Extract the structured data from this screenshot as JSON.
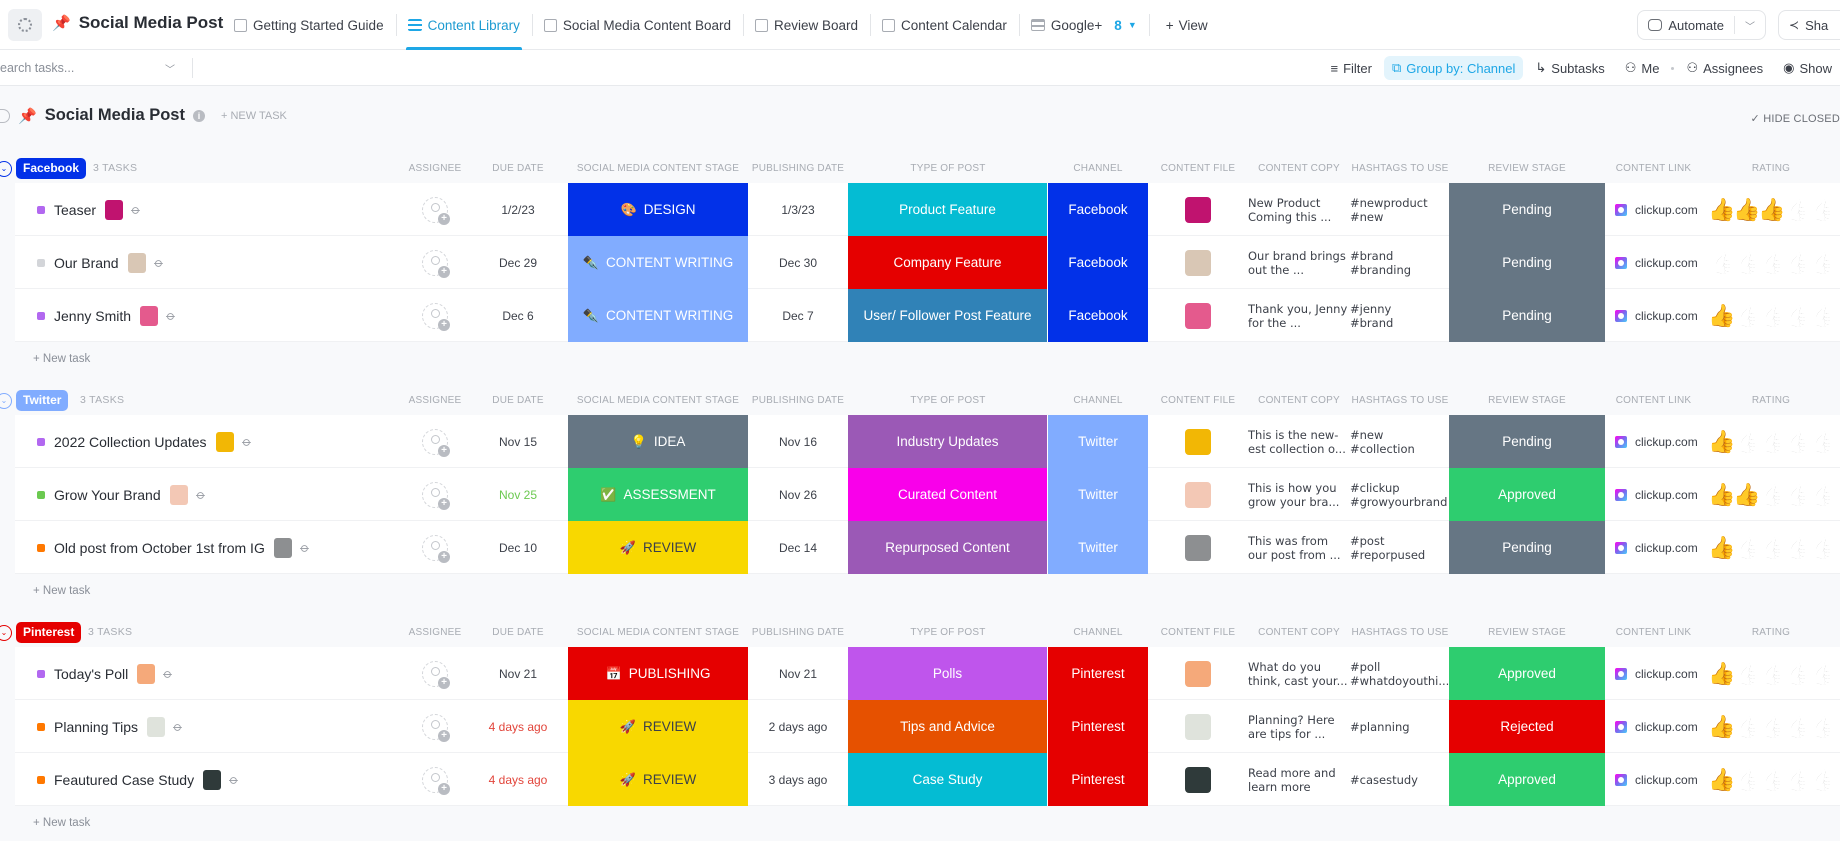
{
  "header": {
    "space_title": "Social Media Post",
    "tabs": [
      {
        "label": "Getting Started Guide",
        "icon": "doc-icon",
        "active": false
      },
      {
        "label": "Content Library",
        "icon": "list-icon",
        "active": true
      },
      {
        "label": "Social Media Content Board",
        "icon": "board-icon",
        "active": false
      },
      {
        "label": "Review Board",
        "icon": "board-icon",
        "active": false
      },
      {
        "label": "Content Calendar",
        "icon": "calendar-icon",
        "active": false
      },
      {
        "label": "Google+",
        "icon": "list-icon",
        "active": false,
        "count": "8"
      }
    ],
    "add_view_label": "View",
    "automate_label": "Automate",
    "share_label": "Sha"
  },
  "toolbar": {
    "search_placeholder": "earch tasks...",
    "filter_label": "Filter",
    "group_by_label": "Group by: Channel",
    "subtasks_label": "Subtasks",
    "me_label": "Me",
    "assignees_label": "Assignees",
    "show_label": "Show"
  },
  "list": {
    "title": "Social Media Post",
    "new_task_label": "+ NEW TASK",
    "hide_closed_label": "✓ HIDE CLOSED"
  },
  "columns": {
    "assignee": "ASSIGNEE",
    "due_date": "DUE DATE",
    "stage": "SOCIAL MEDIA CONTENT STAGE",
    "publishing_date": "PUBLISHING DATE",
    "type": "TYPE OF POST",
    "channel": "CHANNEL",
    "content_file": "CONTENT FILE",
    "content_copy": "CONTENT COPY",
    "hashtags": "HASHTAGS TO USE",
    "review_stage": "REVIEW STAGE",
    "content_link": "CONTENT LINK",
    "rating": "RATING"
  },
  "new_task_row_label": "+ New task",
  "groups": [
    {
      "name": "Facebook",
      "color": "#0231e8",
      "count_label": "3 TASKS",
      "tasks": [
        {
          "name": "Teaser",
          "status_color": "#b268f0",
          "thumb_color": "#c0136f",
          "due": "1/2/23",
          "due_color": "#3c4049",
          "stage": "DESIGN",
          "stage_emoji": "🎨",
          "stage_color": "#0231e8",
          "stage_text": "#ffffff",
          "publishing": "1/3/23",
          "type": "Product Feature",
          "type_color": "#04bcd3",
          "channel": "Facebook",
          "channel_color": "#0231e8",
          "file_color": "#c0136f",
          "copy": "New Product Coming this ...",
          "hashtags": "#newproduct\n#new",
          "review": "Pending",
          "review_color": "#667684",
          "link": "clickup.com",
          "rating": 3
        },
        {
          "name": "Our Brand",
          "status_color": "#d3d5d9",
          "thumb_color": "#d9c7b5",
          "due": "Dec 29",
          "due_color": "#3c4049",
          "stage": "CONTENT WRITING",
          "stage_emoji": "✒️",
          "stage_color": "#81acff",
          "stage_text": "#ffffff",
          "publishing": "Dec 30",
          "type": "Company Feature",
          "type_color": "#e50000",
          "channel": "Facebook",
          "channel_color": "#0231e8",
          "file_color": "#d9c7b5",
          "copy": "Our brand brings out the ...",
          "hashtags": "#brand\n#branding",
          "review": "Pending",
          "review_color": "#667684",
          "link": "clickup.com",
          "rating": 0
        },
        {
          "name": "Jenny Smith",
          "status_color": "#b268f0",
          "thumb_color": "#e45a8d",
          "due": "Dec 6",
          "due_color": "#3c4049",
          "stage": "CONTENT WRITING",
          "stage_emoji": "✒️",
          "stage_color": "#81acff",
          "stage_text": "#ffffff",
          "publishing": "Dec 7",
          "type": "User/ Follower Post Feature",
          "type_color": "#3082b7",
          "channel": "Facebook",
          "channel_color": "#0231e8",
          "file_color": "#e45a8d",
          "copy": "Thank you, Jenny for the ...",
          "hashtags": "#jenny\n#brand",
          "review": "Pending",
          "review_color": "#667684",
          "link": "clickup.com",
          "rating": 1
        }
      ]
    },
    {
      "name": "Twitter",
      "color": "#81acff",
      "count_label": "3 TASKS",
      "tasks": [
        {
          "name": "2022 Collection Updates",
          "status_color": "#b268f0",
          "thumb_color": "#f2b705",
          "due": "Nov 15",
          "due_color": "#3c4049",
          "stage": "IDEA",
          "stage_emoji": "💡",
          "stage_color": "#667684",
          "stage_text": "#ffffff",
          "publishing": "Nov 16",
          "type": "Industry Updates",
          "type_color": "#9b59b6",
          "channel": "Twitter",
          "channel_color": "#81acff",
          "file_color": "#f2b705",
          "copy": "This is the new-est collection o...",
          "hashtags": "#new\n#collection",
          "review": "Pending",
          "review_color": "#667684",
          "link": "clickup.com",
          "rating": 1
        },
        {
          "name": "Grow Your Brand",
          "status_color": "#6bc950",
          "thumb_color": "#f3c8b5",
          "due": "Nov 25",
          "due_color": "#6bc950",
          "stage": "ASSESSMENT",
          "stage_emoji": "✅",
          "stage_color": "#2ecd6f",
          "stage_text": "#ffffff",
          "publishing": "Nov 26",
          "type": "Curated Content",
          "type_color": "#f900ea",
          "channel": "Twitter",
          "channel_color": "#81acff",
          "file_color": "#f3c8b5",
          "copy": "This is how you grow your bra...",
          "hashtags": "#clickup\n#growyourbrand",
          "review": "Approved",
          "review_color": "#2ecd6f",
          "link": "clickup.com",
          "rating": 2
        },
        {
          "name": "Old post from October 1st from IG",
          "status_color": "#ff7800",
          "thumb_color": "#8d8f91",
          "due": "Dec 10",
          "due_color": "#3c4049",
          "stage": "REVIEW",
          "stage_emoji": "🚀",
          "stage_color": "#f8d800",
          "stage_text": "#3c4049",
          "publishing": "Dec 14",
          "type": "Repurposed Content",
          "type_color": "#9b59b6",
          "channel": "Twitter",
          "channel_color": "#81acff",
          "file_color": "#8d8f91",
          "copy": "This was from our post from ...",
          "hashtags": "#post\n#reporpused",
          "review": "Pending",
          "review_color": "#667684",
          "link": "clickup.com",
          "rating": 1
        }
      ]
    },
    {
      "name": "Pinterest",
      "color": "#e50000",
      "count_label": "3 TASKS",
      "tasks": [
        {
          "name": "Today's Poll",
          "status_color": "#b268f0",
          "thumb_color": "#f5a97a",
          "due": "Nov 21",
          "due_color": "#3c4049",
          "stage": "PUBLISHING",
          "stage_emoji": "📅",
          "stage_color": "#e50000",
          "stage_text": "#ffffff",
          "publishing": "Nov 21",
          "type": "Polls",
          "type_color": "#bf55ec",
          "channel": "Pinterest",
          "channel_color": "#e50000",
          "file_color": "#f5a97a",
          "copy": "What do you think, cast your...",
          "hashtags": "#poll\n#whatdoyouthi...",
          "review": "Approved",
          "review_color": "#2ecd6f",
          "link": "clickup.com",
          "rating": 1
        },
        {
          "name": "Planning Tips",
          "status_color": "#ff7800",
          "thumb_color": "#dfe3dc",
          "due": "4 days ago",
          "due_color": "#e2453b",
          "stage": "REVIEW",
          "stage_emoji": "🚀",
          "stage_color": "#f8d800",
          "stage_text": "#3c4049",
          "publishing": "2 days ago",
          "type": "Tips and Advice",
          "type_color": "#e65100",
          "channel": "Pinterest",
          "channel_color": "#e50000",
          "file_color": "#dfe3dc",
          "copy": "Planning? Here are tips for ...",
          "hashtags": "#planning",
          "review": "Rejected",
          "review_color": "#e50000",
          "link": "clickup.com",
          "rating": 1
        },
        {
          "name": "Feautured Case Study",
          "status_color": "#ff7800",
          "thumb_color": "#2f3a3a",
          "due": "4 days ago",
          "due_color": "#e2453b",
          "stage": "REVIEW",
          "stage_emoji": "🚀",
          "stage_color": "#f8d800",
          "stage_text": "#3c4049",
          "publishing": "3 days ago",
          "type": "Case Study",
          "type_color": "#04bcd3",
          "channel": "Pinterest",
          "channel_color": "#e50000",
          "file_color": "#2f3a3a",
          "copy": "Read more and learn more",
          "hashtags": "#casestudy",
          "review": "Approved",
          "review_color": "#2ecd6f",
          "link": "clickup.com",
          "rating": 1
        }
      ]
    }
  ]
}
